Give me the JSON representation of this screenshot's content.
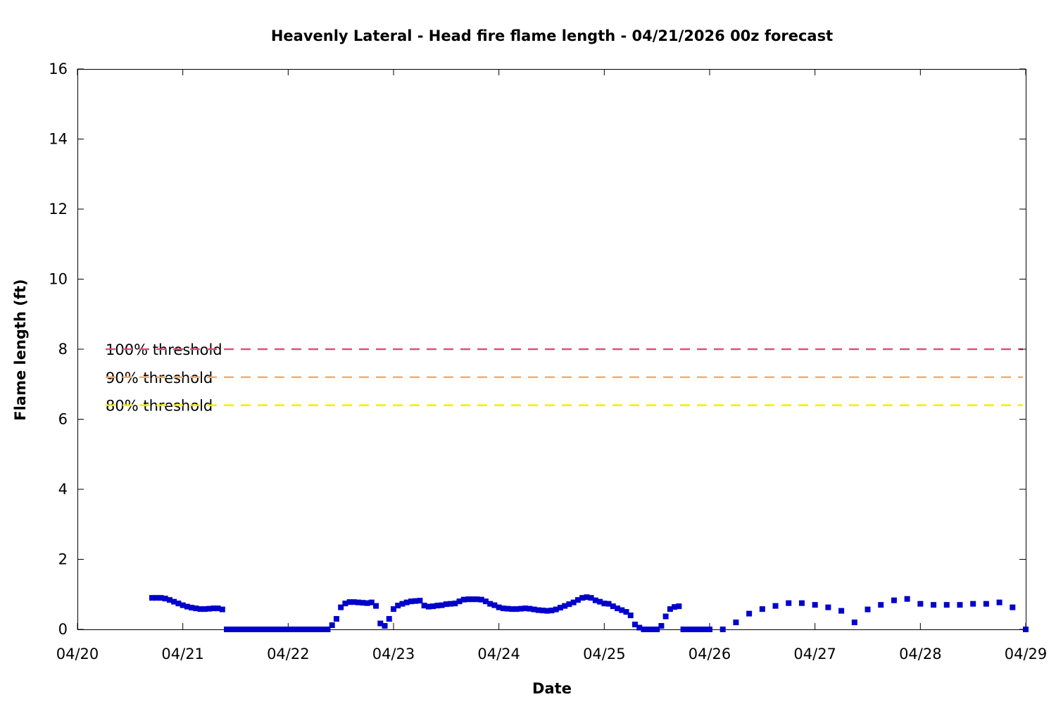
{
  "chart_data": {
    "type": "scatter",
    "title": "Heavenly Lateral - Head fire flame length - 04/21/2026 00z forecast",
    "xlabel": "Date",
    "ylabel": "Flame length (ft)",
    "xlim": [
      "04/20 00:00",
      "04/29 00:00"
    ],
    "ylim": [
      0,
      16
    ],
    "x_ticks": [
      "04/20",
      "04/21",
      "04/22",
      "04/23",
      "04/24",
      "04/25",
      "04/26",
      "04/27",
      "04/28",
      "04/29"
    ],
    "y_ticks": [
      "0",
      "2",
      "4",
      "6",
      "8",
      "10",
      "12",
      "14",
      "16"
    ],
    "grid": false,
    "thresholds": [
      {
        "label": "100% threshold",
        "value": 8.0,
        "color": "#d6557a"
      },
      {
        "label": "90% threshold",
        "value": 7.2,
        "color": "#f0b070"
      },
      {
        "label": "80% threshold",
        "value": 6.4,
        "color": "#f0f000"
      }
    ],
    "series": [
      {
        "color": "#0000cc",
        "points": [
          [
            "04/20 17:00",
            0.9
          ],
          [
            "04/20 18:00",
            0.9
          ],
          [
            "04/20 19:00",
            0.9
          ],
          [
            "04/20 20:00",
            0.88
          ],
          [
            "04/20 21:00",
            0.84
          ],
          [
            "04/20 22:00",
            0.79
          ],
          [
            "04/20 23:00",
            0.74
          ],
          [
            "04/21 00:00",
            0.69
          ],
          [
            "04/21 01:00",
            0.65
          ],
          [
            "04/21 02:00",
            0.62
          ],
          [
            "04/21 03:00",
            0.6
          ],
          [
            "04/21 04:00",
            0.58
          ],
          [
            "04/21 05:00",
            0.58
          ],
          [
            "04/21 06:00",
            0.59
          ],
          [
            "04/21 07:00",
            0.6
          ],
          [
            "04/21 08:00",
            0.6
          ],
          [
            "04/21 09:00",
            0.57
          ],
          [
            "04/21 10:00",
            0.0
          ],
          [
            "04/21 11:00",
            0.0
          ],
          [
            "04/21 12:00",
            0.0
          ],
          [
            "04/21 13:00",
            0.0
          ],
          [
            "04/21 14:00",
            0.0
          ],
          [
            "04/21 15:00",
            0.0
          ],
          [
            "04/21 16:00",
            0.0
          ],
          [
            "04/21 17:00",
            0.0
          ],
          [
            "04/21 18:00",
            0.0
          ],
          [
            "04/21 19:00",
            0.0
          ],
          [
            "04/21 20:00",
            0.0
          ],
          [
            "04/21 21:00",
            0.0
          ],
          [
            "04/21 22:00",
            0.0
          ],
          [
            "04/21 23:00",
            0.0
          ],
          [
            "04/22 00:00",
            0.0
          ],
          [
            "04/22 01:00",
            0.0
          ],
          [
            "04/22 02:00",
            0.0
          ],
          [
            "04/22 03:00",
            0.0
          ],
          [
            "04/22 04:00",
            0.0
          ],
          [
            "04/22 05:00",
            0.0
          ],
          [
            "04/22 06:00",
            0.0
          ],
          [
            "04/22 07:00",
            0.0
          ],
          [
            "04/22 08:00",
            0.0
          ],
          [
            "04/22 09:00",
            0.0
          ],
          [
            "04/22 10:00",
            0.12
          ],
          [
            "04/22 11:00",
            0.3
          ],
          [
            "04/22 12:00",
            0.63
          ],
          [
            "04/22 13:00",
            0.74
          ],
          [
            "04/22 14:00",
            0.78
          ],
          [
            "04/22 15:00",
            0.78
          ],
          [
            "04/22 16:00",
            0.77
          ],
          [
            "04/22 17:00",
            0.76
          ],
          [
            "04/22 18:00",
            0.75
          ],
          [
            "04/22 19:00",
            0.77
          ],
          [
            "04/22 20:00",
            0.67
          ],
          [
            "04/22 21:00",
            0.17
          ],
          [
            "04/22 22:00",
            0.1
          ],
          [
            "04/22 23:00",
            0.3
          ],
          [
            "04/23 00:00",
            0.58
          ],
          [
            "04/23 01:00",
            0.68
          ],
          [
            "04/23 02:00",
            0.73
          ],
          [
            "04/23 03:00",
            0.77
          ],
          [
            "04/23 04:00",
            0.8
          ],
          [
            "04/23 05:00",
            0.81
          ],
          [
            "04/23 06:00",
            0.82
          ],
          [
            "04/23 07:00",
            0.68
          ],
          [
            "04/23 08:00",
            0.65
          ],
          [
            "04/23 09:00",
            0.66
          ],
          [
            "04/23 10:00",
            0.68
          ],
          [
            "04/23 11:00",
            0.69
          ],
          [
            "04/23 12:00",
            0.72
          ],
          [
            "04/23 13:00",
            0.73
          ],
          [
            "04/23 14:00",
            0.74
          ],
          [
            "04/23 15:00",
            0.8
          ],
          [
            "04/23 16:00",
            0.85
          ],
          [
            "04/23 17:00",
            0.86
          ],
          [
            "04/23 18:00",
            0.86
          ],
          [
            "04/23 19:00",
            0.86
          ],
          [
            "04/23 20:00",
            0.85
          ],
          [
            "04/23 21:00",
            0.8
          ],
          [
            "04/23 22:00",
            0.73
          ],
          [
            "04/23 23:00",
            0.69
          ],
          [
            "04/24 00:00",
            0.63
          ],
          [
            "04/24 01:00",
            0.6
          ],
          [
            "04/24 02:00",
            0.59
          ],
          [
            "04/24 03:00",
            0.58
          ],
          [
            "04/24 04:00",
            0.58
          ],
          [
            "04/24 05:00",
            0.59
          ],
          [
            "04/24 06:00",
            0.6
          ],
          [
            "04/24 07:00",
            0.59
          ],
          [
            "04/24 08:00",
            0.57
          ],
          [
            "04/24 09:00",
            0.55
          ],
          [
            "04/24 10:00",
            0.54
          ],
          [
            "04/24 11:00",
            0.53
          ],
          [
            "04/24 12:00",
            0.54
          ],
          [
            "04/24 13:00",
            0.57
          ],
          [
            "04/24 14:00",
            0.62
          ],
          [
            "04/24 15:00",
            0.67
          ],
          [
            "04/24 16:00",
            0.72
          ],
          [
            "04/24 17:00",
            0.77
          ],
          [
            "04/24 18:00",
            0.84
          ],
          [
            "04/24 19:00",
            0.9
          ],
          [
            "04/24 20:00",
            0.92
          ],
          [
            "04/24 21:00",
            0.9
          ],
          [
            "04/24 22:00",
            0.83
          ],
          [
            "04/24 23:00",
            0.79
          ],
          [
            "04/25 00:00",
            0.74
          ],
          [
            "04/25 01:00",
            0.73
          ],
          [
            "04/25 02:00",
            0.66
          ],
          [
            "04/25 03:00",
            0.6
          ],
          [
            "04/25 04:00",
            0.55
          ],
          [
            "04/25 05:00",
            0.5
          ],
          [
            "04/25 06:00",
            0.4
          ],
          [
            "04/25 07:00",
            0.14
          ],
          [
            "04/25 08:00",
            0.05
          ],
          [
            "04/25 09:00",
            0.0
          ],
          [
            "04/25 10:00",
            0.0
          ],
          [
            "04/25 11:00",
            0.0
          ],
          [
            "04/25 12:00",
            0.0
          ],
          [
            "04/25 13:00",
            0.1
          ],
          [
            "04/25 14:00",
            0.37
          ],
          [
            "04/25 15:00",
            0.58
          ],
          [
            "04/25 16:00",
            0.64
          ],
          [
            "04/25 17:00",
            0.66
          ],
          [
            "04/25 18:00",
            0.0
          ],
          [
            "04/25 19:00",
            0.0
          ],
          [
            "04/25 20:00",
            0.0
          ],
          [
            "04/25 21:00",
            0.0
          ],
          [
            "04/25 22:00",
            0.0
          ],
          [
            "04/25 23:00",
            0.0
          ],
          [
            "04/26 00:00",
            0.0
          ],
          [
            "04/26 03:00",
            0.0
          ],
          [
            "04/26 06:00",
            0.2
          ],
          [
            "04/26 09:00",
            0.45
          ],
          [
            "04/26 12:00",
            0.58
          ],
          [
            "04/26 15:00",
            0.67
          ],
          [
            "04/26 18:00",
            0.75
          ],
          [
            "04/26 21:00",
            0.75
          ],
          [
            "04/27 00:00",
            0.7
          ],
          [
            "04/27 03:00",
            0.63
          ],
          [
            "04/27 06:00",
            0.53
          ],
          [
            "04/27 09:00",
            0.2
          ],
          [
            "04/27 12:00",
            0.57
          ],
          [
            "04/27 15:00",
            0.7
          ],
          [
            "04/27 18:00",
            0.83
          ],
          [
            "04/27 21:00",
            0.87
          ],
          [
            "04/28 00:00",
            0.73
          ],
          [
            "04/28 03:00",
            0.7
          ],
          [
            "04/28 06:00",
            0.7
          ],
          [
            "04/28 09:00",
            0.7
          ],
          [
            "04/28 12:00",
            0.73
          ],
          [
            "04/28 15:00",
            0.73
          ],
          [
            "04/28 18:00",
            0.77
          ],
          [
            "04/28 21:00",
            0.63
          ],
          [
            "04/29 00:00",
            0.0
          ]
        ]
      }
    ]
  }
}
